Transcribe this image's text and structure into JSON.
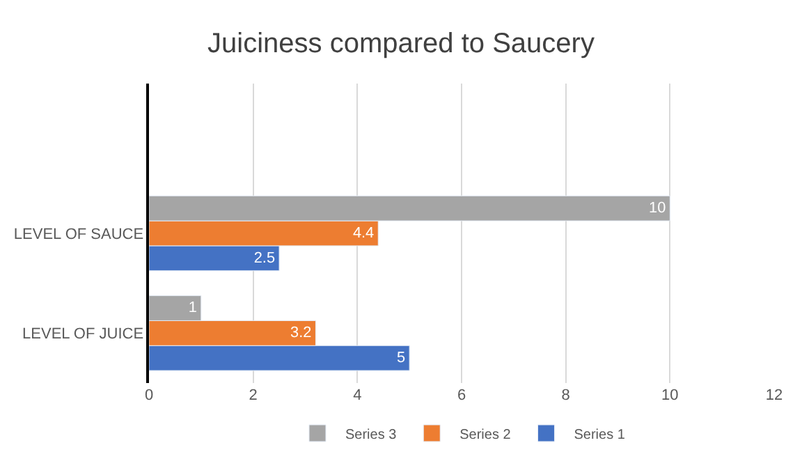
{
  "chart_data": {
    "type": "bar",
    "orientation": "horizontal",
    "title": "Juiciness compared to Saucery",
    "categories": [
      null,
      "LEVEL OF SAUCE",
      "LEVEL OF JUICE"
    ],
    "series": [
      {
        "name": "Series 1",
        "color": "#4472c4",
        "values": [
          null,
          2.5,
          5
        ]
      },
      {
        "name": "Series 2",
        "color": "#ed7d31",
        "values": [
          null,
          4.4,
          3.2
        ]
      },
      {
        "name": "Series 3",
        "color": "#a5a5a5",
        "values": [
          null,
          10,
          1
        ]
      }
    ],
    "xlim": [
      0,
      12
    ],
    "xticks": [
      0,
      2,
      4,
      6,
      8,
      10,
      12
    ],
    "grid": "x",
    "legend": "bottom",
    "data_labels": true
  }
}
